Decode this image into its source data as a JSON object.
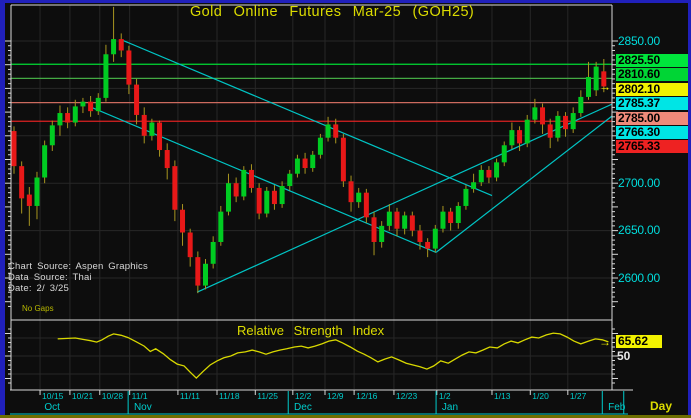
{
  "header": {
    "title": "Gold Online Futures Mar-25 (GOH25)"
  },
  "source_info": {
    "line1": "Chart Source: Aspen Graphics",
    "line2": "Data Source: Thai",
    "line3": "Date:  2/ 3/25"
  },
  "no_gaps_label": "No Gaps",
  "interval_label": "Day",
  "colors": {
    "background": "#0d0d0d",
    "grid": "#272727",
    "axis": "#d9d9d9",
    "bull": "#00cc22",
    "bear": "#e81818",
    "wick": "#a89620",
    "trendline": "#00c4c4",
    "title": "#dcdc00",
    "cyan_text": "#00dddd",
    "rsi_line": "#d8d800",
    "arrow": "#f2f200",
    "border_blue": "#2020bb",
    "border_bottom": "#6e6e00",
    "month_band": "#00cccc"
  },
  "chart_data": [
    {
      "type": "candlestick",
      "title": "Gold Online Futures Mar-25 (GOH25)",
      "ylabel": "Price",
      "ylim": [
        2566,
        2890
      ],
      "grid": true,
      "y_gridline_prices": [
        2850,
        2800,
        2750,
        2700,
        2650,
        2600
      ],
      "y_axis_labels": [
        {
          "text": "2850.00",
          "price": 2850
        },
        {
          "text": "2700.00",
          "price": 2700
        },
        {
          "text": "2650.00",
          "price": 2650
        },
        {
          "text": "2600.00",
          "price": 2600
        }
      ],
      "price_flag_labels": [
        {
          "text": "2825.50",
          "fg": "#000000",
          "bg": "#00e53c",
          "row": 0
        },
        {
          "text": "2810.60",
          "fg": "#000000",
          "bg": "#00d535",
          "row": 1
        },
        {
          "text": "2802.10",
          "fg": "#000000",
          "bg": "#f2f200",
          "row": 2,
          "arrow": true
        },
        {
          "text": "2785.37",
          "fg": "#000000",
          "bg": "#00e5e5",
          "row": 3
        },
        {
          "text": "2785.00",
          "fg": "#000000",
          "bg": "#ef8a7a",
          "row": 4
        },
        {
          "text": "2766.30",
          "fg": "#000000",
          "bg": "#00e5e5",
          "row": 5
        },
        {
          "text": "2765.33",
          "fg": "#000000",
          "bg": "#ee2222",
          "row": 6
        }
      ],
      "h_lines": [
        {
          "price": 2825.5,
          "color": "#00dd33"
        },
        {
          "price": 2810.6,
          "color": "#44aa44"
        },
        {
          "price": 2785.0,
          "color": "#cc6a5e"
        },
        {
          "price": 2765.33,
          "color": "#dd2222"
        }
      ],
      "trendlines": [
        {
          "b1": 14.1,
          "p1": 2851,
          "b2": 62.4,
          "p2": 2687
        },
        {
          "b1": 10.1,
          "p1": 2780,
          "b2": 55.1,
          "p2": 2627
        },
        {
          "b1": 23.9,
          "p1": 2585,
          "b2": 78.1,
          "p2": 2783.5
        },
        {
          "b1": 55.1,
          "p1": 2627,
          "b2": 78.1,
          "p2": 2771
        }
      ],
      "last_price": 2802.1,
      "candles_ohlc": [
        [
          2755,
          2760,
          2710,
          2718
        ],
        [
          2718,
          2723,
          2668,
          2684
        ],
        [
          2688,
          2696,
          2655,
          2676
        ],
        [
          2676,
          2712,
          2662,
          2706
        ],
        [
          2706,
          2745,
          2700,
          2740
        ],
        [
          2740,
          2766,
          2734,
          2761
        ],
        [
          2761,
          2782,
          2750,
          2774
        ],
        [
          2774,
          2780,
          2758,
          2764
        ],
        [
          2764,
          2788,
          2760,
          2781
        ],
        [
          2781,
          2790,
          2774,
          2786
        ],
        [
          2786,
          2792,
          2770,
          2776
        ],
        [
          2776,
          2795,
          2772,
          2790
        ],
        [
          2790,
          2846,
          2786,
          2836
        ],
        [
          2836,
          2886,
          2828,
          2852
        ],
        [
          2852,
          2858,
          2833,
          2840
        ],
        [
          2840,
          2845,
          2794,
          2804
        ],
        [
          2804,
          2810,
          2762,
          2772
        ],
        [
          2772,
          2780,
          2742,
          2750
        ],
        [
          2750,
          2768,
          2745,
          2764
        ],
        [
          2764,
          2766,
          2728,
          2735
        ],
        [
          2735,
          2742,
          2704,
          2716
        ],
        [
          2718,
          2724,
          2660,
          2672
        ],
        [
          2672,
          2678,
          2634,
          2648
        ],
        [
          2648,
          2652,
          2612,
          2622
        ],
        [
          2622,
          2628,
          2584,
          2592
        ],
        [
          2592,
          2620,
          2588,
          2615
        ],
        [
          2615,
          2644,
          2610,
          2638
        ],
        [
          2638,
          2676,
          2634,
          2670
        ],
        [
          2670,
          2710,
          2666,
          2700
        ],
        [
          2700,
          2706,
          2680,
          2686
        ],
        [
          2686,
          2718,
          2682,
          2714
        ],
        [
          2714,
          2720,
          2690,
          2695
        ],
        [
          2695,
          2700,
          2662,
          2668
        ],
        [
          2668,
          2696,
          2664,
          2692
        ],
        [
          2692,
          2698,
          2672,
          2678
        ],
        [
          2678,
          2702,
          2674,
          2697
        ],
        [
          2697,
          2714,
          2692,
          2710
        ],
        [
          2710,
          2730,
          2706,
          2726
        ],
        [
          2726,
          2732,
          2710,
          2716
        ],
        [
          2716,
          2734,
          2712,
          2730
        ],
        [
          2730,
          2752,
          2726,
          2748
        ],
        [
          2748,
          2770,
          2744,
          2762
        ],
        [
          2762,
          2768,
          2742,
          2748
        ],
        [
          2748,
          2752,
          2696,
          2702
        ],
        [
          2702,
          2708,
          2670,
          2680
        ],
        [
          2680,
          2695,
          2674,
          2690
        ],
        [
          2690,
          2694,
          2658,
          2664
        ],
        [
          2664,
          2670,
          2624,
          2638
        ],
        [
          2638,
          2660,
          2632,
          2655
        ],
        [
          2655,
          2678,
          2650,
          2670
        ],
        [
          2670,
          2674,
          2644,
          2652
        ],
        [
          2652,
          2670,
          2646,
          2666
        ],
        [
          2666,
          2670,
          2644,
          2650
        ],
        [
          2650,
          2656,
          2630,
          2638
        ],
        [
          2638,
          2642,
          2622,
          2631
        ],
        [
          2631,
          2656,
          2627,
          2652
        ],
        [
          2652,
          2676,
          2648,
          2670
        ],
        [
          2670,
          2674,
          2650,
          2658
        ],
        [
          2658,
          2680,
          2652,
          2676
        ],
        [
          2676,
          2698,
          2672,
          2694
        ],
        [
          2694,
          2710,
          2690,
          2701
        ],
        [
          2701,
          2719,
          2697,
          2714
        ],
        [
          2714,
          2718,
          2700,
          2706
        ],
        [
          2706,
          2726,
          2702,
          2722
        ],
        [
          2722,
          2744,
          2718,
          2740
        ],
        [
          2740,
          2764,
          2736,
          2756
        ],
        [
          2756,
          2760,
          2734,
          2742
        ],
        [
          2742,
          2772,
          2738,
          2767
        ],
        [
          2767,
          2789,
          2763,
          2780
        ],
        [
          2780,
          2784,
          2752,
          2762
        ],
        [
          2762,
          2768,
          2737,
          2748
        ],
        [
          2748,
          2776,
          2744,
          2771
        ],
        [
          2771,
          2775,
          2749,
          2757
        ],
        [
          2757,
          2780,
          2753,
          2774
        ],
        [
          2774,
          2798,
          2770,
          2791
        ],
        [
          2791,
          2828,
          2788,
          2812
        ],
        [
          2798,
          2828,
          2792,
          2823
        ],
        [
          2818,
          2831,
          2796,
          2802.1
        ]
      ],
      "x_ticks": [
        {
          "label": "10/15",
          "bar": 3.4
        },
        {
          "label": "10/21",
          "bar": 7.3
        },
        {
          "label": "10/28",
          "bar": 11.2
        },
        {
          "label": "11/1",
          "bar": 15.1
        },
        {
          "label": "11/11",
          "bar": 21.4
        },
        {
          "label": "11/18",
          "bar": 26.5
        },
        {
          "label": "11/25",
          "bar": 31.5
        },
        {
          "label": "12/2",
          "bar": 36.4
        },
        {
          "label": "12/9",
          "bar": 40.6
        },
        {
          "label": "12/16",
          "bar": 44.4
        },
        {
          "label": "12/23",
          "bar": 49.6
        },
        {
          "label": "1/2",
          "bar": 55.2
        },
        {
          "label": "1/13",
          "bar": 62.4
        },
        {
          "label": "1/20",
          "bar": 67.4
        },
        {
          "label": "1/27",
          "bar": 72.3
        }
      ],
      "months": [
        {
          "label": "Oct",
          "bar": 3.7
        },
        {
          "label": "Nov",
          "bar": 15.4
        },
        {
          "label": "Dec",
          "bar": 36.3
        },
        {
          "label": "Jan",
          "bar": 55.6
        },
        {
          "label": "Feb",
          "bar": 77.3
        }
      ],
      "month_separator_bars": [
        14.9,
        35.8,
        55.1,
        76.8,
        79.6
      ]
    },
    {
      "type": "line",
      "title": "Relative Strength Index",
      "current_value": "65.62",
      "current_value_num": 65.62,
      "axis_label_50": "50",
      "ylim": [
        15,
        85
      ],
      "points": [
        [
          5.7,
          69
        ],
        [
          7,
          69.5
        ],
        [
          8,
          70
        ],
        [
          9,
          68.5
        ],
        [
          10,
          67
        ],
        [
          10.8,
          65.5
        ],
        [
          11.5,
          68
        ],
        [
          12.3,
          72
        ],
        [
          13,
          74.5
        ],
        [
          14,
          73
        ],
        [
          14.9,
          70.5
        ],
        [
          15.9,
          66
        ],
        [
          17,
          61
        ],
        [
          17.8,
          55
        ],
        [
          18.5,
          58
        ],
        [
          19.5,
          52.5
        ],
        [
          20.4,
          46
        ],
        [
          21.3,
          41
        ],
        [
          22.2,
          39
        ],
        [
          23,
          32
        ],
        [
          23.8,
          25.5
        ],
        [
          24.7,
          33
        ],
        [
          25.6,
          40
        ],
        [
          26.5,
          44.5
        ],
        [
          27.4,
          48
        ],
        [
          28.3,
          50
        ],
        [
          29.2,
          53.5
        ],
        [
          30.2,
          54.5
        ],
        [
          31.1,
          56.5
        ],
        [
          32,
          54.5
        ],
        [
          32.9,
          52
        ],
        [
          33.8,
          54.5
        ],
        [
          34.7,
          56.5
        ],
        [
          35.6,
          58
        ],
        [
          36.6,
          60
        ],
        [
          37.5,
          61
        ],
        [
          38.4,
          59
        ],
        [
          39.3,
          61
        ],
        [
          40.2,
          63.5
        ],
        [
          41.1,
          66.5
        ],
        [
          42,
          68
        ],
        [
          42.9,
          64.5
        ],
        [
          43.9,
          60
        ],
        [
          44.8,
          55.5
        ],
        [
          45.7,
          52
        ],
        [
          46.6,
          48
        ],
        [
          47.5,
          43.5
        ],
        [
          48.4,
          46.5
        ],
        [
          49.3,
          49
        ],
        [
          50.3,
          45.5
        ],
        [
          51.2,
          42
        ],
        [
          52.1,
          40
        ],
        [
          53,
          38
        ],
        [
          53.9,
          35.5
        ],
        [
          54.8,
          39
        ],
        [
          55.7,
          44.5
        ],
        [
          56.7,
          42
        ],
        [
          57.6,
          46.5
        ],
        [
          58.5,
          51
        ],
        [
          59.4,
          54.5
        ],
        [
          60.3,
          53.5
        ],
        [
          61.2,
          56.5
        ],
        [
          62.1,
          60
        ],
        [
          63.1,
          59
        ],
        [
          64,
          63.5
        ],
        [
          64.9,
          66.5
        ],
        [
          65.8,
          64.5
        ],
        [
          66.7,
          68
        ],
        [
          67.6,
          71
        ],
        [
          68.5,
          70
        ],
        [
          69.5,
          73.5
        ],
        [
          70.4,
          75.5
        ],
        [
          71.3,
          74.5
        ],
        [
          72.2,
          71
        ],
        [
          73.1,
          66.5
        ],
        [
          74,
          63.5
        ],
        [
          75,
          66.5
        ],
        [
          75.9,
          69
        ],
        [
          76.8,
          68
        ],
        [
          77.6,
          65.62
        ]
      ]
    }
  ]
}
